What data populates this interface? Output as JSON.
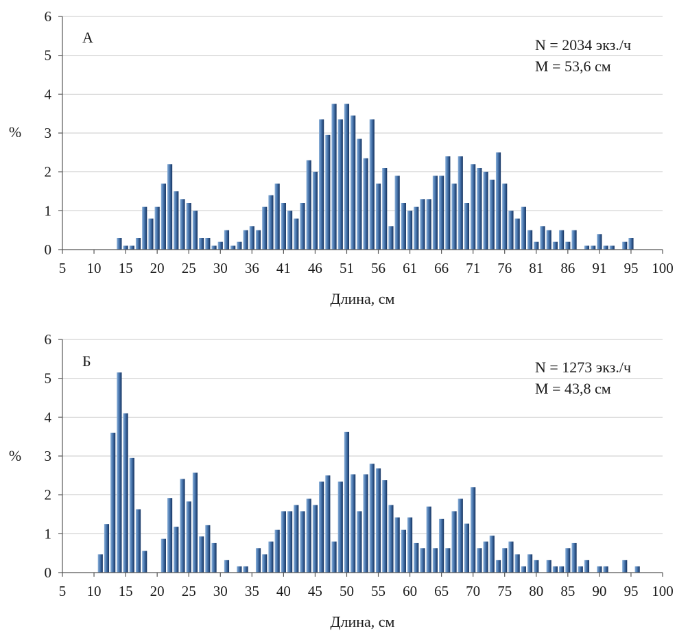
{
  "bar_gradient": {
    "light": "#8ab0d9",
    "mid": "#4a78b0",
    "dark": "#13315e"
  },
  "chart_data": [
    {
      "type": "bar",
      "panel_label": "А",
      "stats": [
        "N = 2034 экз./ч",
        "M = 53,6 см"
      ],
      "ylabel": "%",
      "xlabel": "Длина, см",
      "ylim": [
        0,
        6
      ],
      "y_ticks": [
        "0",
        "1",
        "2",
        "3",
        "4",
        "5",
        "6"
      ],
      "x_tick_labels": [
        "5",
        "10",
        "15",
        "20",
        "25",
        "30",
        "36",
        "41",
        "46",
        "51",
        "56",
        "61",
        "66",
        "71",
        "76",
        "81",
        "86",
        "91",
        "95",
        "100"
      ],
      "grid": true,
      "x": [
        14,
        15,
        16,
        17,
        18,
        19,
        20,
        21,
        22,
        23,
        24,
        25,
        26,
        27,
        28,
        29,
        30,
        31,
        32,
        33,
        34,
        35,
        36,
        37,
        38,
        39,
        40,
        41,
        42,
        43,
        44,
        45,
        46,
        47,
        48,
        49,
        50,
        51,
        52,
        53,
        54,
        55,
        56,
        57,
        58,
        59,
        60,
        61,
        62,
        63,
        64,
        65,
        66,
        67,
        68,
        69,
        70,
        71,
        72,
        73,
        74,
        75,
        76,
        77,
        78,
        79,
        80,
        81,
        82,
        83,
        84,
        85,
        86,
        87,
        88,
        89,
        90,
        91,
        92,
        93,
        94,
        95
      ],
      "values": [
        0.3,
        0.1,
        0.1,
        0.3,
        1.1,
        0.8,
        1.1,
        1.7,
        2.2,
        1.5,
        1.3,
        1.2,
        1.0,
        0.3,
        0.3,
        0.1,
        0.2,
        0.5,
        0.1,
        0.2,
        0.5,
        0.6,
        0.5,
        1.1,
        1.4,
        1.7,
        1.2,
        1.0,
        0.8,
        1.2,
        2.3,
        2.0,
        3.35,
        2.95,
        3.75,
        3.35,
        3.75,
        3.45,
        2.85,
        2.35,
        3.35,
        1.7,
        2.1,
        0.6,
        1.9,
        1.2,
        1.0,
        1.1,
        1.3,
        1.3,
        1.9,
        1.9,
        2.4,
        1.7,
        2.4,
        1.2,
        2.2,
        2.1,
        2.0,
        1.8,
        2.5,
        1.7,
        1.0,
        0.8,
        1.1,
        0.5,
        0.2,
        0.6,
        0.5,
        0.2,
        0.5,
        0.2,
        0.5,
        0.0,
        0.1,
        0.1,
        0.4,
        0.1,
        0.1,
        0.0,
        0.2,
        0.3
      ]
    },
    {
      "type": "bar",
      "panel_label": "Б",
      "stats": [
        "N = 1273 экз./ч",
        "M = 43,8 см"
      ],
      "ylabel": "%",
      "xlabel": "Длина, см",
      "ylim": [
        0,
        6
      ],
      "y_ticks": [
        "0",
        "1",
        "2",
        "3",
        "4",
        "5",
        "6"
      ],
      "x_tick_labels": [
        "5",
        "10",
        "15",
        "20",
        "25",
        "30",
        "35",
        "40",
        "45",
        "50",
        "55",
        "60",
        "65",
        "70",
        "75",
        "80",
        "85",
        "90",
        "95",
        "100"
      ],
      "grid": true,
      "x": [
        11,
        12,
        13,
        14,
        15,
        16,
        17,
        18,
        19,
        20,
        21,
        22,
        23,
        24,
        25,
        26,
        27,
        28,
        29,
        30,
        31,
        32,
        33,
        34,
        35,
        36,
        37,
        38,
        39,
        40,
        41,
        42,
        43,
        44,
        45,
        46,
        47,
        48,
        49,
        50,
        51,
        52,
        53,
        54,
        55,
        56,
        57,
        58,
        59,
        60,
        61,
        62,
        63,
        64,
        65,
        66,
        67,
        68,
        69,
        70,
        71,
        72,
        73,
        74,
        75,
        76,
        77,
        78,
        79,
        80,
        81,
        82,
        83,
        84,
        85,
        86,
        87,
        88,
        89,
        90,
        91,
        92,
        93,
        94,
        95,
        96
      ],
      "values": [
        0.47,
        1.25,
        3.6,
        5.15,
        4.1,
        2.95,
        1.63,
        0.56,
        0,
        0,
        0.87,
        1.92,
        1.18,
        2.41,
        1.83,
        2.57,
        0.93,
        1.22,
        0.76,
        0,
        0.32,
        0,
        0.16,
        0.16,
        0,
        0.63,
        0.47,
        0.8,
        1.1,
        1.58,
        1.58,
        1.74,
        1.58,
        1.9,
        1.74,
        2.34,
        2.5,
        0.8,
        2.34,
        3.62,
        2.53,
        1.58,
        2.53,
        2.8,
        2.68,
        2.38,
        1.74,
        1.42,
        1.1,
        1.42,
        0.76,
        0.63,
        1.7,
        0.63,
        1.38,
        0.63,
        1.58,
        1.9,
        1.26,
        2.2,
        0.63,
        0.8,
        0.95,
        0.32,
        0.63,
        0.8,
        0.47,
        0.16,
        0.47,
        0.32,
        0,
        0.32,
        0.16,
        0.16,
        0.63,
        0.76,
        0.16,
        0.32,
        0,
        0.16,
        0.16,
        0,
        0,
        0.32,
        0,
        0.16
      ]
    }
  ]
}
